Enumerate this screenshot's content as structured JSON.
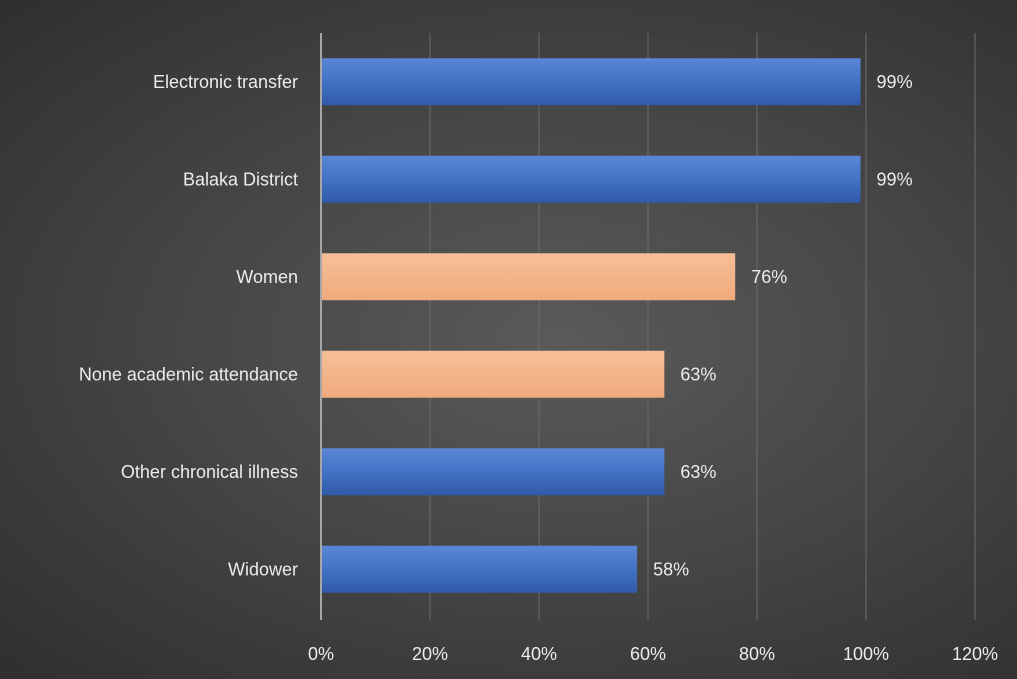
{
  "chart_data": {
    "type": "bar",
    "orientation": "horizontal",
    "title": "",
    "xlabel": "",
    "ylabel": "",
    "categories": [
      "Electronic transfer",
      "Balaka District",
      "Women ",
      "None academic attendance",
      "Other chronical illness",
      "Widower"
    ],
    "values": [
      99,
      99,
      76,
      63,
      63,
      58
    ],
    "data_labels": [
      "99%",
      "99%",
      "76%",
      "63%",
      "63%",
      "58%"
    ],
    "bar_colors": [
      "#4472c4",
      "#4472c4",
      "#f4b183",
      "#f4b183",
      "#4472c4",
      "#4472c4"
    ],
    "xlim": [
      0,
      120
    ],
    "x_ticks": [
      "0%",
      "20%",
      "40%",
      "60%",
      "80%",
      "100%",
      "120%"
    ],
    "grid": true,
    "legend": "none"
  }
}
